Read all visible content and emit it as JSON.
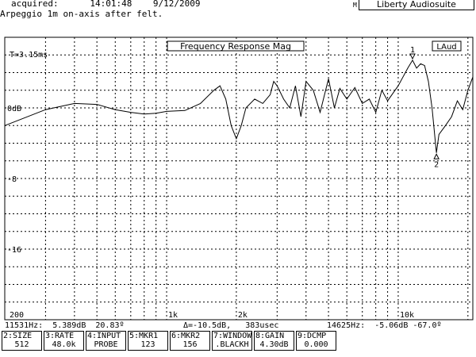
{
  "header": {
    "acquired_label": "acquired:",
    "time": "14:01:48",
    "date": "9/12/2009",
    "subtitle": "Arpeggio 1m on-axis after felt.",
    "flag": "M",
    "app_name": "Liberty Audiosuite"
  },
  "plot": {
    "title": "Frequency Response Mag",
    "badge": "LAud",
    "time_label": "T=3.15ms",
    "y_labels": [
      "0dB",
      "-8",
      "-16"
    ],
    "x_labels": [
      "200",
      "1k",
      "2k",
      "10k"
    ],
    "markers": [
      "1",
      "2"
    ]
  },
  "chart_data": {
    "type": "line",
    "title": "Frequency Response Mag",
    "xlabel": "",
    "ylabel": "",
    "x_scale": "log",
    "xlim": [
      200,
      21000
    ],
    "ylim": [
      -24,
      8
    ],
    "grid": true,
    "series": [
      {
        "x": [
          200,
          300,
          400,
          500,
          600,
          700,
          800,
          900,
          1000,
          1200,
          1400,
          1600,
          1700,
          1800,
          1900,
          2000,
          2100,
          2200,
          2400,
          2600,
          2800,
          2900,
          3000,
          3200,
          3400,
          3600,
          3800,
          4000,
          4300,
          4600,
          5000,
          5300,
          5600,
          6000,
          6500,
          7000,
          7500,
          8000,
          8500,
          9000,
          10000,
          11000,
          11531,
          12000,
          12500,
          13000,
          13500,
          14000,
          14625,
          15000,
          16000,
          17000,
          18000,
          19000,
          20000,
          21000
        ],
        "y": [
          -2,
          -0.2,
          0.5,
          0.4,
          -0.2,
          -0.5,
          -0.7,
          -0.6,
          -0.4,
          -0.3,
          0.5,
          2,
          2.5,
          1,
          -2,
          -3.5,
          -2,
          0,
          1,
          0.5,
          1.5,
          3,
          2.5,
          1,
          0,
          2.5,
          -1,
          3,
          2,
          -0.5,
          3.3,
          0,
          2.2,
          1,
          2.3,
          0.5,
          1,
          -0.5,
          2,
          0.8,
          2.5,
          4.5,
          5.4,
          4.5,
          5,
          4.8,
          3,
          0,
          -5.1,
          -3,
          -2,
          -1,
          0.8,
          -0.2,
          2,
          3.5
        ]
      }
    ],
    "markers": [
      {
        "label": "1",
        "frequency": 11531,
        "level_db": 5.389,
        "phase_deg": 20.83
      },
      {
        "label": "2",
        "frequency": 14625,
        "level_db": -5.06,
        "phase_deg": -67.0
      }
    ]
  },
  "readout": {
    "mkr1": "11531Hz:  5.389dB  20.83º",
    "delta": "Δ=-10.5dB,   383usec",
    "mkr2": "14625Hz:  -5.06dB -67.0º"
  },
  "softkeys": [
    {
      "label": "2:SIZE",
      "value": "512"
    },
    {
      "label": "3:RATE",
      "value": "48.0k"
    },
    {
      "label": "4:INPUT",
      "value": "PROBE"
    },
    {
      "label": "5:MKR1",
      "value": "123"
    },
    {
      "label": "6:MKR2",
      "value": "156"
    },
    {
      "label": "7:WINDOW",
      "value": ".BLACKH"
    },
    {
      "label": "8:GAIN",
      "value": "4.30dB"
    },
    {
      "label": "9:DCMP",
      "value": "0.000"
    }
  ]
}
